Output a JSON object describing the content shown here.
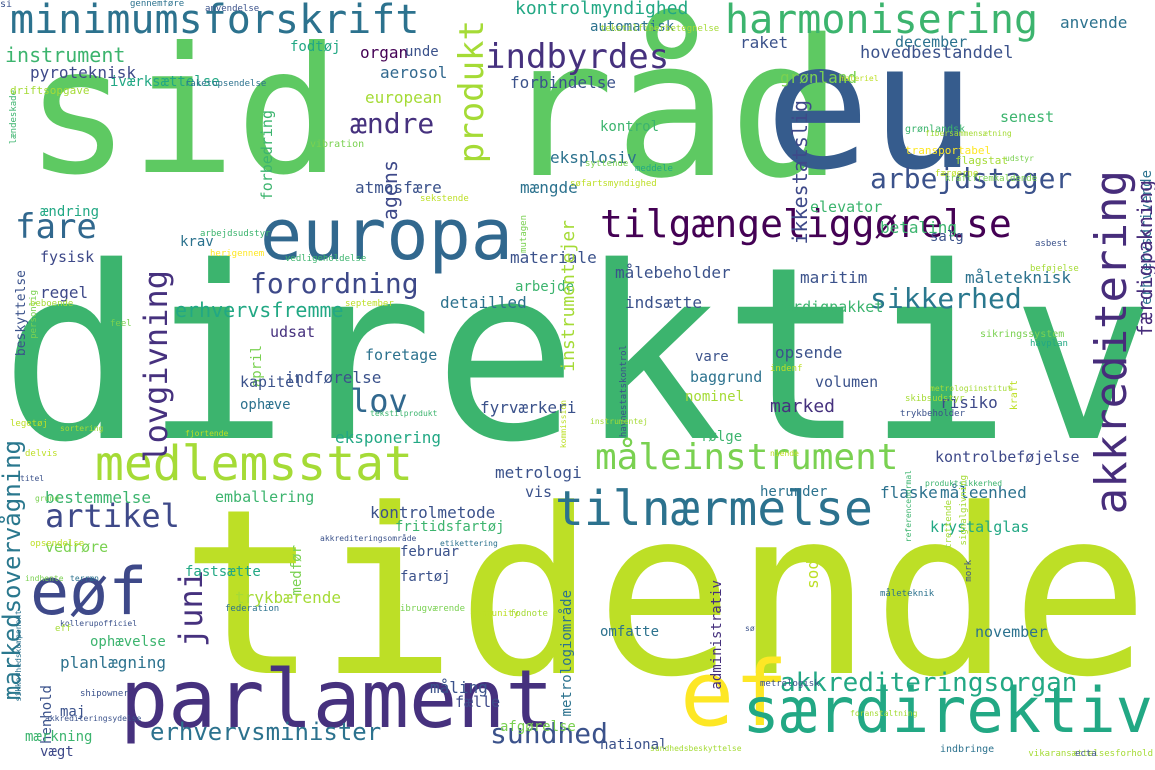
{
  "words": [
    {
      "text": "direktiv",
      "color": "#3cb46e"
    },
    {
      "text": "tidende",
      "color": "#bddf26"
    },
    {
      "text": "sid",
      "color": "#5ec962"
    },
    {
      "text": "råd",
      "color": "#5ec962"
    },
    {
      "text": "eu",
      "color": "#365c8d"
    },
    {
      "text": "europa",
      "color": "#31688e"
    },
    {
      "text": "parlament",
      "color": "#46317e"
    },
    {
      "text": "eøf",
      "color": "#3e4989"
    },
    {
      "text": "ef",
      "color": "#fde725"
    },
    {
      "text": "medlemsstat",
      "color": "#a5db36"
    },
    {
      "text": "tilnærmelse",
      "color": "#2c728e"
    },
    {
      "text": "særdirektiv",
      "color": "#22a884"
    },
    {
      "text": "minimumsforskrift",
      "color": "#2c728e"
    },
    {
      "text": "harmonisering",
      "color": "#3cb46e"
    },
    {
      "text": "måleinstrument",
      "color": "#7ad151"
    },
    {
      "text": "tilgængeliggørelse",
      "color": "#440154"
    },
    {
      "text": "akkreditering",
      "color": "#472d7b"
    },
    {
      "text": "akkrediteringsorgan",
      "color": "#22a884"
    },
    {
      "text": "markedsovervågning",
      "color": "#2a788e"
    },
    {
      "text": "erhvervsminister",
      "color": "#2c728e"
    },
    {
      "text": "arbejdstager",
      "color": "#3b528b"
    },
    {
      "text": "lovgivning",
      "color": "#46317e"
    },
    {
      "text": "forordning",
      "color": "#3e4989"
    },
    {
      "text": "sikkerhed",
      "color": "#2a788e"
    },
    {
      "text": "indbyrdes",
      "color": "#46317e"
    },
    {
      "text": "produkt",
      "color": "#a5db36"
    },
    {
      "text": "fare",
      "color": "#31688e"
    },
    {
      "text": "lov",
      "color": "#31688e"
    },
    {
      "text": "artikel",
      "color": "#3e4989"
    },
    {
      "text": "sundhed",
      "color": "#3b528b"
    },
    {
      "text": "juni",
      "color": "#46317e"
    },
    {
      "text": "ændre",
      "color": "#46317e"
    },
    {
      "text": "instrument",
      "color": "#3cb46e"
    },
    {
      "text": "kontrolmyndighed",
      "color": "#22a884"
    },
    {
      "text": "hovedbestanddel",
      "color": "#3b528b"
    },
    {
      "text": "pyroteknisk",
      "color": "#3e4989"
    },
    {
      "text": "iværksættelse",
      "color": "#22a884"
    },
    {
      "text": "fodtøj",
      "color": "#22a884"
    },
    {
      "text": "organ",
      "color": "#440154"
    },
    {
      "text": "raket",
      "color": "#3b528b"
    },
    {
      "text": "aerosol",
      "color": "#31688e"
    },
    {
      "text": "forbindelse",
      "color": "#3b528b"
    },
    {
      "text": "european",
      "color": "#a5db36"
    },
    {
      "text": "kontrol",
      "color": "#3cb46e"
    },
    {
      "text": "eksplosiv",
      "color": "#2c728e"
    },
    {
      "text": "ikkestatslig",
      "color": "#3e4989"
    },
    {
      "text": "agens",
      "color": "#3e4989"
    },
    {
      "text": "atmosfære",
      "color": "#3b528b"
    },
    {
      "text": "mængde",
      "color": "#2c728e"
    },
    {
      "text": "elevator",
      "color": "#3cb46e"
    },
    {
      "text": "betaling",
      "color": "#3cb46e"
    },
    {
      "text": "salg",
      "color": "#3b528b"
    },
    {
      "text": "senest",
      "color": "#3cb46e"
    },
    {
      "text": "grønland",
      "color": "#7ad151"
    },
    {
      "text": "december",
      "color": "#2c728e"
    },
    {
      "text": "automatisk",
      "color": "#2c728e"
    },
    {
      "text": "unde",
      "color": "#3b528b"
    },
    {
      "text": "anvende",
      "color": "#2c728e"
    },
    {
      "text": "erhvervsdrivende",
      "color": "#2c728e"
    },
    {
      "text": "færdigpakning",
      "color": "#472d7b"
    },
    {
      "text": "ændring",
      "color": "#22a884"
    },
    {
      "text": "krav",
      "color": "#2c728e"
    },
    {
      "text": "fysisk",
      "color": "#3e4989"
    },
    {
      "text": "regel",
      "color": "#3e4989"
    },
    {
      "text": "erhvervsfremme",
      "color": "#22a884"
    },
    {
      "text": "detailled",
      "color": "#2c728e"
    },
    {
      "text": "arbejde",
      "color": "#3cb46e"
    },
    {
      "text": "materiale",
      "color": "#3b528b"
    },
    {
      "text": "målebeholder",
      "color": "#3b528b"
    },
    {
      "text": "maritim",
      "color": "#3b528b"
    },
    {
      "text": "måleteknisk",
      "color": "#2c728e"
    },
    {
      "text": "indsætte",
      "color": "#3b528b"
    },
    {
      "text": "færdigpakket",
      "color": "#3cb46e"
    },
    {
      "text": "udsat",
      "color": "#46317e"
    },
    {
      "text": "april",
      "color": "#7ad151"
    },
    {
      "text": "foretage",
      "color": "#2c728e"
    },
    {
      "text": "indførelse",
      "color": "#3b528b"
    },
    {
      "text": "kapitel",
      "color": "#3b528b"
    },
    {
      "text": "ophæve",
      "color": "#2c728e"
    },
    {
      "text": "eksponering",
      "color": "#22a884"
    },
    {
      "text": "fyrværkeri",
      "color": "#3b528b"
    },
    {
      "text": "instrumentejer",
      "color": "#a5db36"
    },
    {
      "text": "vare",
      "color": "#3b528b"
    },
    {
      "text": "baggrund",
      "color": "#2c728e"
    },
    {
      "text": "nominel",
      "color": "#a5db36"
    },
    {
      "text": "opsende",
      "color": "#3b528b"
    },
    {
      "text": "volumen",
      "color": "#3b528b"
    },
    {
      "text": "marked",
      "color": "#46317e"
    },
    {
      "text": "risiko",
      "color": "#3e4989"
    },
    {
      "text": "følge",
      "color": "#3cb46e"
    },
    {
      "text": "kontrolbeføjelse",
      "color": "#3e4989"
    },
    {
      "text": "måleenhed",
      "color": "#2c728e"
    },
    {
      "text": "flaske",
      "color": "#2c728e"
    },
    {
      "text": "krystalglas",
      "color": "#22a884"
    },
    {
      "text": "herunder",
      "color": "#2c728e"
    },
    {
      "text": "metrologi",
      "color": "#3b528b"
    },
    {
      "text": "vis",
      "color": "#3b528b"
    },
    {
      "text": "bestemmelse",
      "color": "#3cb46e"
    },
    {
      "text": "emballering",
      "color": "#3cb46e"
    },
    {
      "text": "kontrolmetode",
      "color": "#3b528b"
    },
    {
      "text": "fritidsfartøj",
      "color": "#3cb46e"
    },
    {
      "text": "vedrøre",
      "color": "#7ad151"
    },
    {
      "text": "februar",
      "color": "#3b528b"
    },
    {
      "text": "fartøj",
      "color": "#3b528b"
    },
    {
      "text": "medfør",
      "color": "#7ad151"
    },
    {
      "text": "fastsætte",
      "color": "#22a884"
    },
    {
      "text": "trykbærende",
      "color": "#a5db36"
    },
    {
      "text": "omfatte",
      "color": "#2c728e"
    },
    {
      "text": "metrologiområde",
      "color": "#2c728e"
    },
    {
      "text": "administrativ",
      "color": "#46317e"
    },
    {
      "text": "november",
      "color": "#2c728e"
    },
    {
      "text": "ophævelse",
      "color": "#3cb46e"
    },
    {
      "text": "planlægning",
      "color": "#2c728e"
    },
    {
      "text": "henhold",
      "color": "#3b528b"
    },
    {
      "text": "maj",
      "color": "#3b528b"
    },
    {
      "text": "fælle",
      "color": "#3e4989"
    },
    {
      "text": "måling",
      "color": "#3b528b"
    },
    {
      "text": "afgørelse",
      "color": "#7ad151"
    },
    {
      "text": "mærkning",
      "color": "#3cb46e"
    },
    {
      "text": "vægt",
      "color": "#3e4989"
    },
    {
      "text": "national",
      "color": "#3b528b"
    },
    {
      "text": "beskyttelse",
      "color": "#3b528b"
    },
    {
      "text": "forbedring",
      "color": "#3cb46e"
    },
    {
      "text": "gennemføre",
      "color": "#2c728e"
    },
    {
      "text": "anvendelse",
      "color": "#3b528b"
    },
    {
      "text": "raketopsendelse",
      "color": "#2c728e"
    },
    {
      "text": "materiel",
      "color": "#bddf26"
    },
    {
      "text": "tekstilfiberbetegnelse",
      "color": "#a5db36"
    },
    {
      "text": "grønlandsk",
      "color": "#3cb46e"
    },
    {
      "text": "transportabel",
      "color": "#fde725"
    },
    {
      "text": "fibersammensætning",
      "color": "#a5db36"
    },
    {
      "text": "flagstat",
      "color": "#a5db36"
    },
    {
      "text": "udstyr",
      "color": "#7ad151"
    },
    {
      "text": "færøerne",
      "color": "#bddf26"
    },
    {
      "text": "syttende",
      "color": "#7ad151"
    },
    {
      "text": "meddele",
      "color": "#22a884"
    },
    {
      "text": "vibration",
      "color": "#7ad151"
    },
    {
      "text": "mutagen",
      "color": "#7ad151"
    },
    {
      "text": "sekstende",
      "color": "#bddf26"
    },
    {
      "text": "søfartsmyndighed",
      "color": "#bddf26"
    },
    {
      "text": "kraftfremkaldende",
      "color": "#7ad151"
    },
    {
      "text": "lændeskade",
      "color": "#3cb46e"
    },
    {
      "text": "driftsopgave",
      "color": "#a5db36"
    },
    {
      "text": "arbejdsudstyr",
      "color": "#3cb46e"
    },
    {
      "text": "herigennem",
      "color": "#fde725"
    },
    {
      "text": "asbest",
      "color": "#3b528b"
    },
    {
      "text": "vedligeholdelse",
      "color": "#3cb46e"
    },
    {
      "text": "beføjelse",
      "color": "#a5db36"
    },
    {
      "text": "personlig",
      "color": "#7ad151"
    },
    {
      "text": "beboende",
      "color": "#a5db36"
    },
    {
      "text": "feel",
      "color": "#7ad151"
    },
    {
      "text": "september",
      "color": "#bddf26"
    },
    {
      "text": "indenf",
      "color": "#bddf26"
    },
    {
      "text": "sikringssystem",
      "color": "#7ad151"
    },
    {
      "text": "havnestatskontrol",
      "color": "#3b528b"
    },
    {
      "text": "metrologiinstitut",
      "color": "#a5db36"
    },
    {
      "text": "havplan",
      "color": "#22a884"
    },
    {
      "text": "kraft",
      "color": "#bddf26"
    },
    {
      "text": "skibsudstyr",
      "color": "#a5db36"
    },
    {
      "text": "trykbeholder",
      "color": "#3b528b"
    },
    {
      "text": "tekstilprodukt",
      "color": "#3cb46e"
    },
    {
      "text": "kommission",
      "color": "#bddf26"
    },
    {
      "text": "instrumentej",
      "color": "#a5db36"
    },
    {
      "text": "legetøj",
      "color": "#bddf26"
    },
    {
      "text": "sortering",
      "color": "#a5db36"
    },
    {
      "text": "delvis",
      "color": "#bddf26"
    },
    {
      "text": "fjortende",
      "color": "#bddf26"
    },
    {
      "text": "titel",
      "color": "#3b528b"
    },
    {
      "text": "grund",
      "color": "#7ad151"
    },
    {
      "text": "opsendelse",
      "color": "#bddf26"
    },
    {
      "text": "produktsikkerhed",
      "color": "#3cb46e"
    },
    {
      "text": "niende",
      "color": "#bddf26"
    },
    {
      "text": "referencenormal",
      "color": "#3cb46e"
    },
    {
      "text": "signalgivning",
      "color": "#a5db36"
    },
    {
      "text": "akkrediteringsområde",
      "color": "#3b528b"
    },
    {
      "text": "etikettering",
      "color": "#2c728e"
    },
    {
      "text": "indhente",
      "color": "#7ad151"
    },
    {
      "text": "terræn",
      "color": "#2c728e"
    },
    {
      "text": "federation",
      "color": "#2c728e"
    },
    {
      "text": "sikkerhedskomponent",
      "color": "#2c728e"
    },
    {
      "text": "kollerupofficiel",
      "color": "#3b528b"
    },
    {
      "text": "community",
      "color": "#bddf26"
    },
    {
      "text": "ibrugværende",
      "color": "#7ad151"
    },
    {
      "text": "fodnote",
      "color": "#a5db36"
    },
    {
      "text": "måleteknik",
      "color": "#2c728e"
    },
    {
      "text": "mork",
      "color": "#3b528b"
    },
    {
      "text": "akkrediteringsydelse",
      "color": "#3b528b"
    },
    {
      "text": "shipowner",
      "color": "#3b528b"
    },
    {
      "text": "sundhedsbeskyttelse",
      "color": "#a5db36"
    },
    {
      "text": "metrologisk",
      "color": "#3b528b"
    },
    {
      "text": "foranstaltning",
      "color": "#a5db36"
    },
    {
      "text": "indbringe",
      "color": "#2c728e"
    },
    {
      "text": "vikaransættelsesforhold",
      "color": "#a5db36"
    },
    {
      "text": "ecta",
      "color": "#3b528b"
    },
    {
      "text": "trettende",
      "color": "#a5db36"
    },
    {
      "text": "eff",
      "color": "#a5db36"
    },
    {
      "text": "sod",
      "color": "#bddf26"
    },
    {
      "text": "sø",
      "color": "#3b528b"
    },
    {
      "text": "si",
      "color": "#3b528b"
    }
  ]
}
